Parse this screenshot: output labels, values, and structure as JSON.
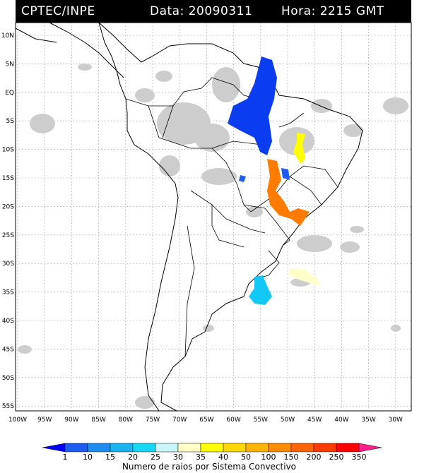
{
  "header": {
    "source": "CPTEC/INPE",
    "date_label": "Data: 20090311",
    "time_label": "Hora: 2215 GMT"
  },
  "axes": {
    "lat_labels": [
      "10N",
      "5N",
      "EQ",
      "5S",
      "10S",
      "15S",
      "20S",
      "25S",
      "30S",
      "35S",
      "40S",
      "45S",
      "50S",
      "55S"
    ],
    "lon_labels": [
      "100W",
      "95W",
      "90W",
      "85W",
      "80W",
      "75W",
      "70W",
      "65W",
      "60W",
      "55W",
      "50W",
      "45W",
      "40W",
      "35W",
      "30W"
    ]
  },
  "colorbar": {
    "title": "Numero de raios por Sistema Convectivo",
    "ticks": [
      "1",
      "10",
      "15",
      "20",
      "25",
      "30",
      "35",
      "40",
      "50",
      "100",
      "150",
      "200",
      "250",
      "350"
    ],
    "colors": [
      "#0000ff",
      "#1e5cf0",
      "#1e8cf0",
      "#18b4f0",
      "#14d8f5",
      "#c8f5f5",
      "#ffffc8",
      "#ffff00",
      "#ffd700",
      "#ffb400",
      "#ff8c00",
      "#ff6400",
      "#ff3c00",
      "#ff0000",
      "#ff1e8c"
    ]
  },
  "map": {
    "land_color": "#ffffff",
    "cloud_color": "#cccccc",
    "grid_style": "dotted"
  }
}
